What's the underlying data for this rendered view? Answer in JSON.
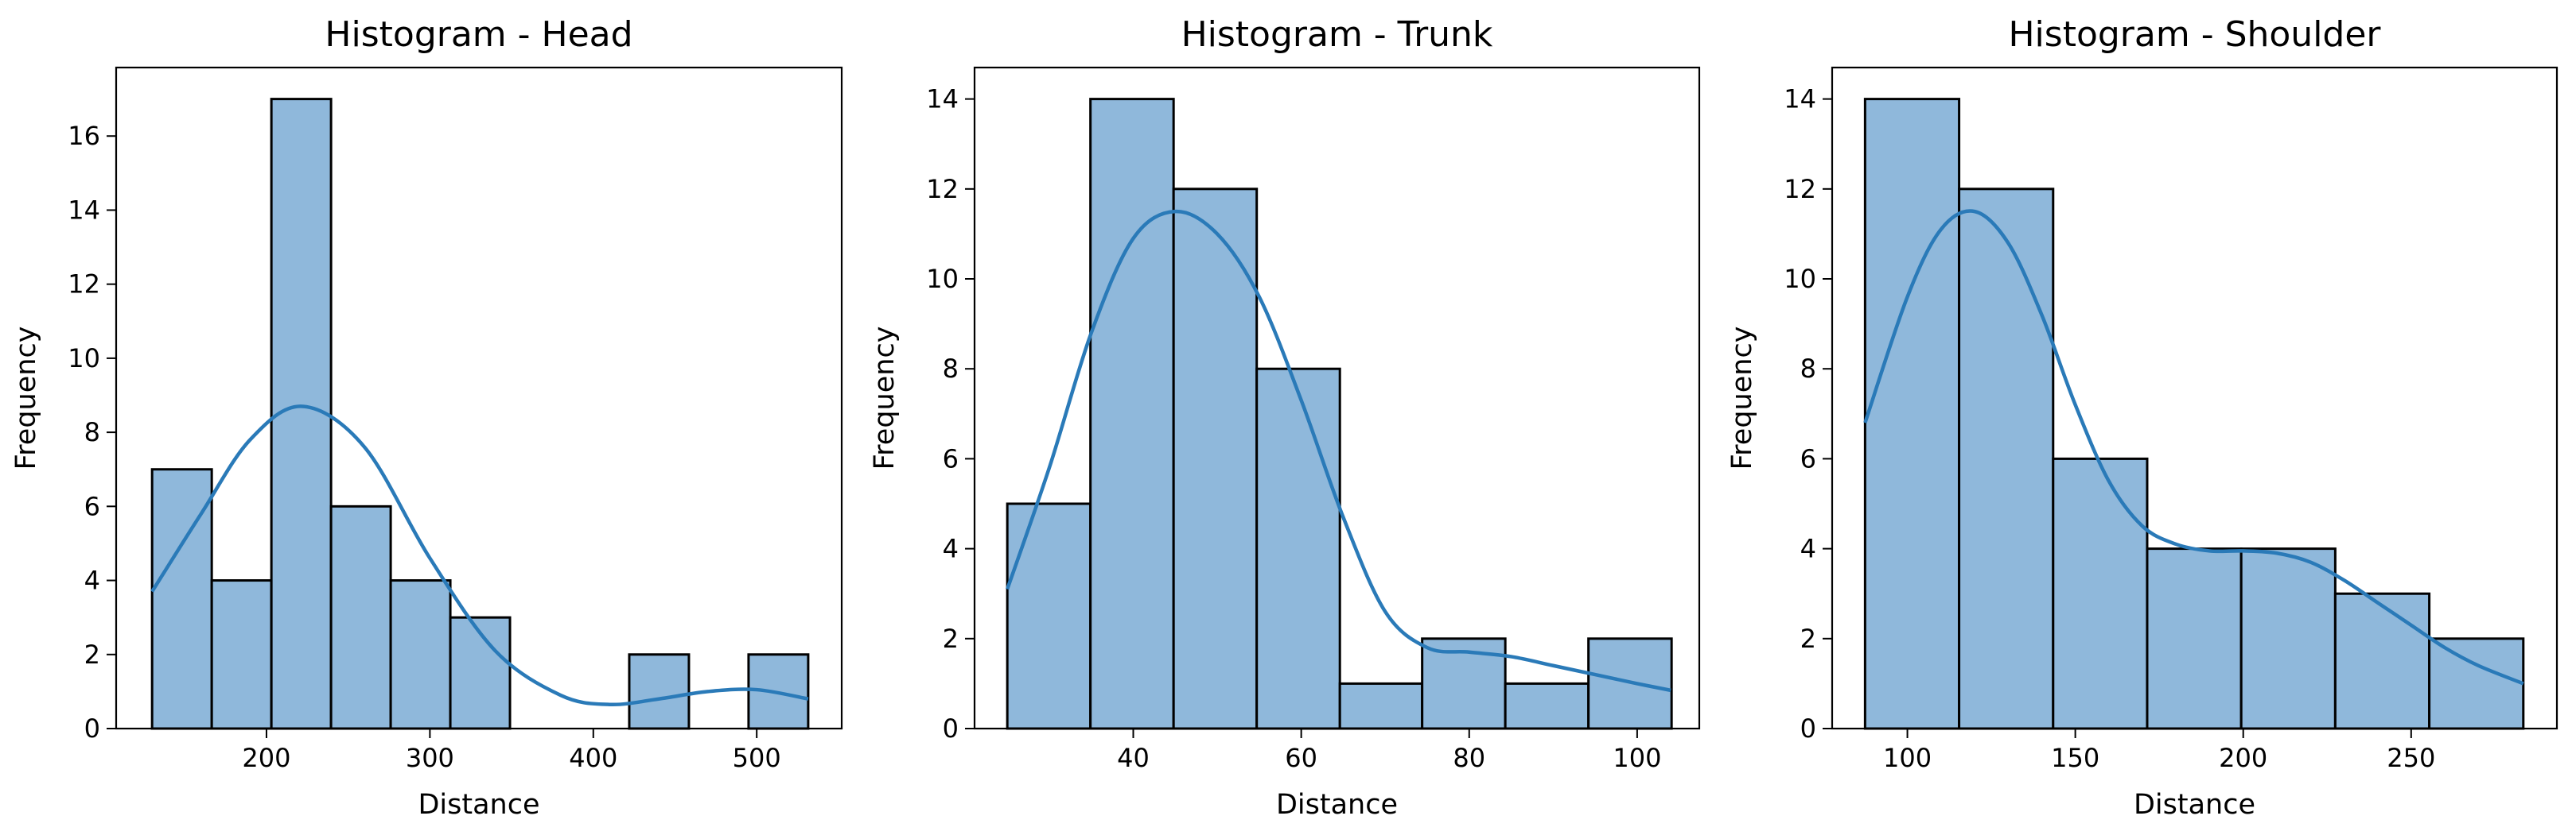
{
  "colors": {
    "bar_fill": "#8fb8db",
    "bar_edge": "#000000",
    "kde_line": "#2a7ab8"
  },
  "chart_data": [
    {
      "type": "bar",
      "title": "Histogram - Head",
      "xlabel": "Distance",
      "ylabel": "Frequency",
      "xlim": [
        108,
        552
      ],
      "ylim": [
        0,
        17.85
      ],
      "xticks": [
        200,
        300,
        400,
        500
      ],
      "yticks": [
        0,
        2,
        4,
        6,
        8,
        10,
        12,
        14,
        16
      ],
      "bins": [
        {
          "x0": 130,
          "x1": 166.5,
          "count": 7
        },
        {
          "x0": 166.5,
          "x1": 203,
          "count": 4
        },
        {
          "x0": 203,
          "x1": 239.5,
          "count": 17
        },
        {
          "x0": 239.5,
          "x1": 276,
          "count": 6
        },
        {
          "x0": 276,
          "x1": 312.5,
          "count": 4
        },
        {
          "x0": 312.5,
          "x1": 349,
          "count": 3
        },
        {
          "x0": 349,
          "x1": 385.5,
          "count": 0
        },
        {
          "x0": 385.5,
          "x1": 422,
          "count": 0
        },
        {
          "x0": 422,
          "x1": 458.5,
          "count": 2
        },
        {
          "x0": 458.5,
          "x1": 495,
          "count": 0
        },
        {
          "x0": 495,
          "x1": 531.5,
          "count": 2
        }
      ],
      "kde": {
        "x": [
          130,
          160,
          190,
          222,
          260,
          300,
          340,
          380,
          410,
          440,
          470,
          500,
          531.5
        ],
        "y": [
          3.7,
          5.8,
          7.8,
          8.7,
          7.6,
          4.6,
          2.1,
          0.9,
          0.65,
          0.8,
          1.0,
          1.05,
          0.8
        ]
      }
    },
    {
      "type": "bar",
      "title": "Histogram - Trunk",
      "xlabel": "Distance",
      "ylabel": "Frequency",
      "xlim": [
        21.1,
        107.4
      ],
      "ylim": [
        0,
        14.7
      ],
      "xticks": [
        40,
        60,
        80,
        100
      ],
      "yticks": [
        0,
        2,
        4,
        6,
        8,
        10,
        12,
        14
      ],
      "bins": [
        {
          "x0": 25.0,
          "x1": 34.9,
          "count": 5
        },
        {
          "x0": 34.9,
          "x1": 44.8,
          "count": 14
        },
        {
          "x0": 44.8,
          "x1": 54.7,
          "count": 12
        },
        {
          "x0": 54.7,
          "x1": 64.6,
          "count": 8
        },
        {
          "x0": 64.6,
          "x1": 74.4,
          "count": 1
        },
        {
          "x0": 74.4,
          "x1": 84.3,
          "count": 2
        },
        {
          "x0": 84.3,
          "x1": 94.2,
          "count": 1
        },
        {
          "x0": 94.2,
          "x1": 104.1,
          "count": 2
        }
      ],
      "kde": {
        "x": [
          25,
          30,
          35,
          40,
          45,
          50,
          55,
          60,
          65,
          70,
          75,
          80,
          85,
          90,
          95,
          100,
          104
        ],
        "y": [
          3.1,
          5.8,
          8.8,
          10.9,
          11.5,
          11.0,
          9.6,
          7.3,
          4.7,
          2.6,
          1.8,
          1.7,
          1.6,
          1.4,
          1.2,
          1.0,
          0.85
        ]
      }
    },
    {
      "type": "bar",
      "title": "Histogram - Shoulder",
      "xlabel": "Distance",
      "ylabel": "Frequency",
      "xlim": [
        77.6,
        293.4
      ],
      "ylim": [
        0,
        14.7
      ],
      "xticks": [
        100,
        150,
        200,
        250
      ],
      "yticks": [
        0,
        2,
        4,
        6,
        8,
        10,
        12,
        14
      ],
      "bins": [
        {
          "x0": 87.4,
          "x1": 115.4,
          "count": 14
        },
        {
          "x0": 115.4,
          "x1": 143.4,
          "count": 12
        },
        {
          "x0": 143.4,
          "x1": 171.4,
          "count": 6
        },
        {
          "x0": 171.4,
          "x1": 199.4,
          "count": 4
        },
        {
          "x0": 199.4,
          "x1": 227.4,
          "count": 4
        },
        {
          "x0": 227.4,
          "x1": 255.4,
          "count": 3
        },
        {
          "x0": 255.4,
          "x1": 283.4,
          "count": 2
        }
      ],
      "kde": {
        "x": [
          87.4,
          100,
          110,
          120,
          130,
          140,
          150,
          160,
          170,
          180,
          190,
          200,
          210,
          220,
          230,
          240,
          250,
          260,
          270,
          283.4
        ],
        "y": [
          6.8,
          9.6,
          11.1,
          11.5,
          10.8,
          9.2,
          7.2,
          5.5,
          4.5,
          4.1,
          3.95,
          3.95,
          3.9,
          3.7,
          3.3,
          2.8,
          2.3,
          1.8,
          1.4,
          1.0
        ]
      }
    }
  ]
}
